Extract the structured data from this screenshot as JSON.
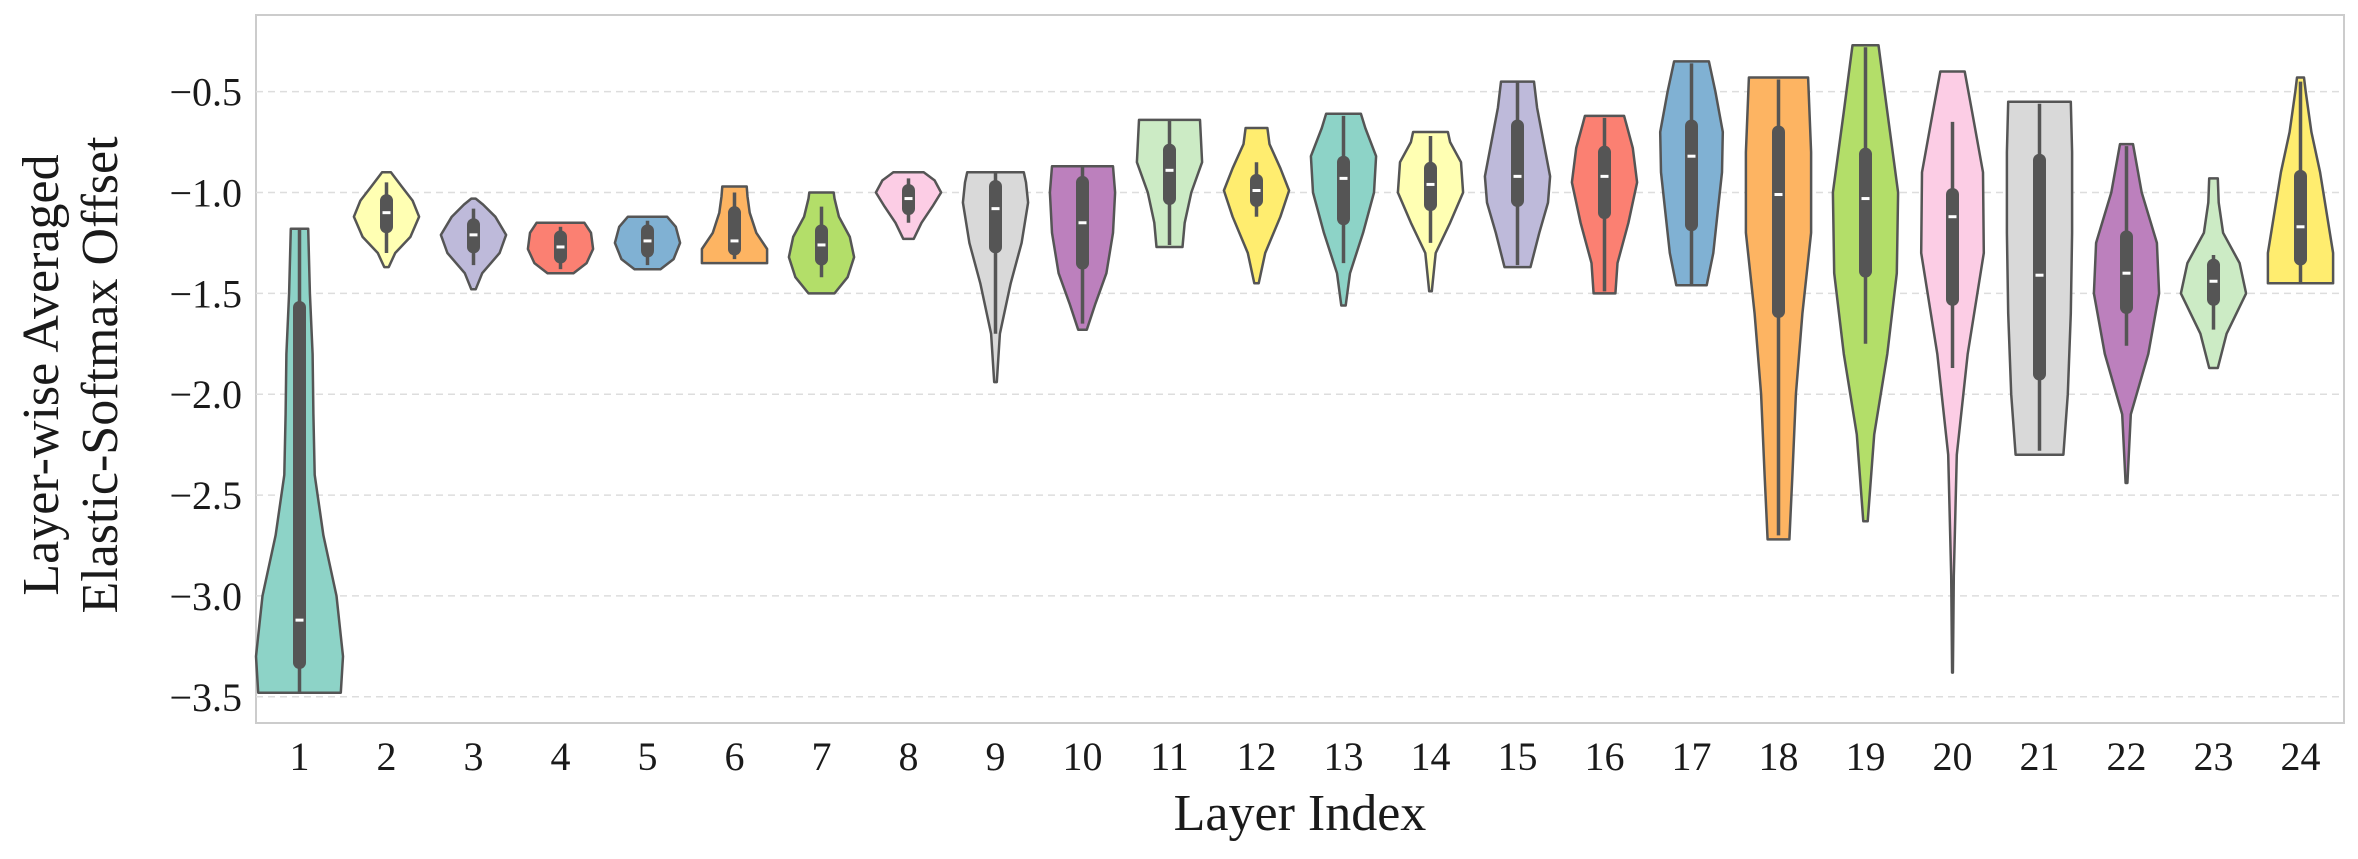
{
  "chart_data": {
    "type": "violin",
    "title": "",
    "xlabel": "Layer Index",
    "ylabel_lines": [
      "Layer-wise Averaged",
      "Elastic-Softmax Offset"
    ],
    "ylim": [
      -3.63,
      -0.12
    ],
    "yticks": [
      -0.5,
      -1.0,
      -1.5,
      -2.0,
      -2.5,
      -3.0,
      -3.5
    ],
    "ytick_labels": [
      "−0.5",
      "−1.0",
      "−1.5",
      "−2.0",
      "−2.5",
      "−3.0",
      "−3.5"
    ],
    "grid": "y-dashed",
    "categories": [
      "1",
      "2",
      "3",
      "4",
      "5",
      "6",
      "7",
      "8",
      "9",
      "10",
      "11",
      "12",
      "13",
      "14",
      "15",
      "16",
      "17",
      "18",
      "19",
      "20",
      "21",
      "22",
      "23",
      "24"
    ],
    "colors": [
      "#8dd3c7",
      "#ffffb3",
      "#bebada",
      "#fb8072",
      "#80b1d3",
      "#fdb462",
      "#b3de69",
      "#fccde5",
      "#d9d9d9",
      "#bc80bd",
      "#ccebc5",
      "#ffed6f",
      "#8dd3c7",
      "#ffffb3",
      "#bebada",
      "#fb8072",
      "#80b1d3",
      "#fdb462",
      "#b3de69",
      "#fccde5",
      "#d9d9d9",
      "#bc80bd",
      "#ccebc5",
      "#ffed6f"
    ],
    "violins": [
      {
        "min": -3.48,
        "max": -1.18,
        "q1": -3.33,
        "median": -3.12,
        "q3": -1.57,
        "whisker_low": -3.48,
        "whisker_high": -1.18,
        "cut": true,
        "profile": [
          [
            -3.48,
            0.95
          ],
          [
            -3.3,
            1.0
          ],
          [
            -3.0,
            0.85
          ],
          [
            -2.7,
            0.55
          ],
          [
            -2.4,
            0.35
          ],
          [
            -2.1,
            0.32
          ],
          [
            -1.8,
            0.3
          ],
          [
            -1.5,
            0.24
          ],
          [
            -1.18,
            0.2
          ]
        ]
      },
      {
        "min": -1.37,
        "max": -0.9,
        "q1": -1.17,
        "median": -1.1,
        "q3": -1.04,
        "whisker_low": -1.3,
        "whisker_high": -0.95,
        "profile": [
          [
            -1.37,
            0.05
          ],
          [
            -1.3,
            0.2
          ],
          [
            -1.22,
            0.55
          ],
          [
            -1.12,
            0.75
          ],
          [
            -1.04,
            0.6
          ],
          [
            -0.97,
            0.35
          ],
          [
            -0.9,
            0.1
          ]
        ]
      },
      {
        "min": -1.48,
        "max": -1.03,
        "q1": -1.27,
        "median": -1.21,
        "q3": -1.16,
        "whisker_low": -1.36,
        "whisker_high": -1.08,
        "profile": [
          [
            -1.48,
            0.05
          ],
          [
            -1.4,
            0.2
          ],
          [
            -1.3,
            0.6
          ],
          [
            -1.21,
            0.75
          ],
          [
            -1.12,
            0.5
          ],
          [
            -1.06,
            0.22
          ],
          [
            -1.03,
            0.05
          ]
        ]
      },
      {
        "min": -1.4,
        "max": -1.15,
        "q1": -1.32,
        "median": -1.27,
        "q3": -1.22,
        "whisker_low": -1.38,
        "whisker_high": -1.17,
        "profile": [
          [
            -1.4,
            0.3
          ],
          [
            -1.35,
            0.6
          ],
          [
            -1.28,
            0.75
          ],
          [
            -1.2,
            0.7
          ],
          [
            -1.15,
            0.55
          ]
        ]
      },
      {
        "min": -1.38,
        "max": -1.12,
        "q1": -1.29,
        "median": -1.24,
        "q3": -1.19,
        "whisker_low": -1.36,
        "whisker_high": -1.14,
        "profile": [
          [
            -1.38,
            0.3
          ],
          [
            -1.33,
            0.6
          ],
          [
            -1.25,
            0.75
          ],
          [
            -1.17,
            0.65
          ],
          [
            -1.12,
            0.45
          ]
        ]
      },
      {
        "min": -1.35,
        "max": -0.97,
        "q1": -1.28,
        "median": -1.24,
        "q3": -1.1,
        "whisker_low": -1.33,
        "whisker_high": -1.0,
        "profile": [
          [
            -1.35,
            0.75
          ],
          [
            -1.28,
            0.75
          ],
          [
            -1.2,
            0.5
          ],
          [
            -1.1,
            0.35
          ],
          [
            -1.02,
            0.3
          ],
          [
            -0.97,
            0.28
          ]
        ]
      },
      {
        "min": -1.5,
        "max": -1.0,
        "q1": -1.33,
        "median": -1.26,
        "q3": -1.19,
        "whisker_low": -1.42,
        "whisker_high": -1.07,
        "profile": [
          [
            -1.5,
            0.3
          ],
          [
            -1.42,
            0.6
          ],
          [
            -1.32,
            0.75
          ],
          [
            -1.22,
            0.65
          ],
          [
            -1.12,
            0.4
          ],
          [
            -1.03,
            0.3
          ],
          [
            -1.0,
            0.28
          ]
        ]
      },
      {
        "min": -1.23,
        "max": -0.9,
        "q1": -1.08,
        "median": -1.03,
        "q3": -0.99,
        "whisker_low": -1.15,
        "whisker_high": -0.93,
        "profile": [
          [
            -1.23,
            0.12
          ],
          [
            -1.15,
            0.3
          ],
          [
            -1.07,
            0.55
          ],
          [
            -1.0,
            0.75
          ],
          [
            -0.94,
            0.6
          ],
          [
            -0.9,
            0.35
          ]
        ]
      },
      {
        "min": -1.94,
        "max": -0.9,
        "q1": -1.27,
        "median": -1.08,
        "q3": -0.97,
        "whisker_low": -1.7,
        "whisker_high": -0.9,
        "profile": [
          [
            -1.94,
            0.03
          ],
          [
            -1.7,
            0.1
          ],
          [
            -1.45,
            0.35
          ],
          [
            -1.25,
            0.6
          ],
          [
            -1.05,
            0.75
          ],
          [
            -0.95,
            0.7
          ],
          [
            -0.9,
            0.65
          ]
        ]
      },
      {
        "min": -1.68,
        "max": -0.87,
        "q1": -1.35,
        "median": -1.15,
        "q3": -0.95,
        "whisker_low": -1.65,
        "whisker_high": -0.87,
        "profile": [
          [
            -1.68,
            0.1
          ],
          [
            -1.55,
            0.3
          ],
          [
            -1.4,
            0.55
          ],
          [
            -1.2,
            0.7
          ],
          [
            -1.0,
            0.75
          ],
          [
            -0.87,
            0.7
          ]
        ]
      },
      {
        "min": -1.27,
        "max": -0.64,
        "q1": -1.03,
        "median": -0.89,
        "q3": -0.79,
        "whisker_low": -1.26,
        "whisker_high": -0.64,
        "profile": [
          [
            -1.27,
            0.3
          ],
          [
            -1.15,
            0.35
          ],
          [
            -1.0,
            0.5
          ],
          [
            -0.85,
            0.75
          ],
          [
            -0.72,
            0.72
          ],
          [
            -0.64,
            0.7
          ]
        ]
      },
      {
        "min": -1.45,
        "max": -0.68,
        "q1": -1.04,
        "median": -0.99,
        "q3": -0.94,
        "whisker_low": -1.12,
        "whisker_high": -0.85,
        "profile": [
          [
            -1.45,
            0.05
          ],
          [
            -1.3,
            0.2
          ],
          [
            -1.12,
            0.55
          ],
          [
            -0.99,
            0.75
          ],
          [
            -0.88,
            0.55
          ],
          [
            -0.76,
            0.3
          ],
          [
            -0.68,
            0.25
          ]
        ]
      },
      {
        "min": -1.56,
        "max": -0.61,
        "q1": -1.13,
        "median": -0.93,
        "q3": -0.85,
        "whisker_low": -1.35,
        "whisker_high": -0.62,
        "profile": [
          [
            -1.56,
            0.05
          ],
          [
            -1.4,
            0.15
          ],
          [
            -1.2,
            0.45
          ],
          [
            -1.0,
            0.7
          ],
          [
            -0.82,
            0.75
          ],
          [
            -0.68,
            0.5
          ],
          [
            -0.61,
            0.4
          ]
        ]
      },
      {
        "min": -1.49,
        "max": -0.7,
        "q1": -1.06,
        "median": -0.96,
        "q3": -0.88,
        "whisker_low": -1.25,
        "whisker_high": -0.72,
        "profile": [
          [
            -1.49,
            0.03
          ],
          [
            -1.3,
            0.12
          ],
          [
            -1.15,
            0.45
          ],
          [
            -1.0,
            0.75
          ],
          [
            -0.85,
            0.7
          ],
          [
            -0.75,
            0.45
          ],
          [
            -0.7,
            0.4
          ]
        ]
      },
      {
        "min": -1.37,
        "max": -0.45,
        "q1": -1.04,
        "median": -0.92,
        "q3": -0.67,
        "whisker_low": -1.36,
        "whisker_high": -0.45,
        "profile": [
          [
            -1.37,
            0.3
          ],
          [
            -1.2,
            0.5
          ],
          [
            -1.05,
            0.7
          ],
          [
            -0.92,
            0.75
          ],
          [
            -0.75,
            0.6
          ],
          [
            -0.58,
            0.45
          ],
          [
            -0.45,
            0.38
          ]
        ]
      },
      {
        "min": -1.5,
        "max": -0.62,
        "q1": -1.1,
        "median": -0.92,
        "q3": -0.8,
        "whisker_low": -1.49,
        "whisker_high": -0.63,
        "profile": [
          [
            -1.5,
            0.25
          ],
          [
            -1.35,
            0.3
          ],
          [
            -1.15,
            0.55
          ],
          [
            -0.95,
            0.75
          ],
          [
            -0.78,
            0.65
          ],
          [
            -0.66,
            0.5
          ],
          [
            -0.62,
            0.45
          ]
        ]
      },
      {
        "min": -1.46,
        "max": -0.35,
        "q1": -1.16,
        "median": -0.82,
        "q3": -0.67,
        "whisker_low": -1.46,
        "whisker_high": -0.36,
        "profile": [
          [
            -1.46,
            0.35
          ],
          [
            -1.3,
            0.5
          ],
          [
            -1.1,
            0.6
          ],
          [
            -0.9,
            0.7
          ],
          [
            -0.7,
            0.72
          ],
          [
            -0.5,
            0.55
          ],
          [
            -0.35,
            0.4
          ]
        ]
      },
      {
        "min": -2.72,
        "max": -0.43,
        "q1": -1.59,
        "median": -1.01,
        "q3": -0.7,
        "whisker_low": -2.7,
        "whisker_high": -0.44,
        "profile": [
          [
            -2.72,
            0.25
          ],
          [
            -2.4,
            0.32
          ],
          [
            -2.0,
            0.4
          ],
          [
            -1.6,
            0.55
          ],
          [
            -1.2,
            0.75
          ],
          [
            -0.8,
            0.75
          ],
          [
            -0.43,
            0.68
          ]
        ]
      },
      {
        "min": -2.63,
        "max": -0.27,
        "q1": -1.39,
        "median": -1.03,
        "q3": -0.81,
        "whisker_low": -1.75,
        "whisker_high": -0.28,
        "profile": [
          [
            -2.63,
            0.05
          ],
          [
            -2.2,
            0.2
          ],
          [
            -1.8,
            0.5
          ],
          [
            -1.4,
            0.72
          ],
          [
            -1.0,
            0.75
          ],
          [
            -0.6,
            0.5
          ],
          [
            -0.27,
            0.3
          ]
        ]
      },
      {
        "min": -3.38,
        "max": -0.4,
        "q1": -1.53,
        "median": -1.12,
        "q3": -1.01,
        "whisker_low": -1.87,
        "whisker_high": -0.65,
        "profile": [
          [
            -3.38,
            0.01
          ],
          [
            -2.9,
            0.03
          ],
          [
            -2.3,
            0.1
          ],
          [
            -1.8,
            0.35
          ],
          [
            -1.3,
            0.72
          ],
          [
            -0.9,
            0.7
          ],
          [
            -0.6,
            0.45
          ],
          [
            -0.4,
            0.28
          ]
        ]
      },
      {
        "min": -2.3,
        "max": -0.55,
        "q1": -1.9,
        "median": -1.41,
        "q3": -0.84,
        "whisker_low": -2.28,
        "whisker_high": -0.56,
        "profile": [
          [
            -2.3,
            0.55
          ],
          [
            -2.0,
            0.65
          ],
          [
            -1.6,
            0.72
          ],
          [
            -1.2,
            0.75
          ],
          [
            -0.8,
            0.75
          ],
          [
            -0.55,
            0.72
          ]
        ]
      },
      {
        "min": -2.44,
        "max": -0.76,
        "q1": -1.57,
        "median": -1.4,
        "q3": -1.22,
        "whisker_low": -1.76,
        "whisker_high": -0.77,
        "profile": [
          [
            -2.44,
            0.02
          ],
          [
            -2.1,
            0.1
          ],
          [
            -1.8,
            0.5
          ],
          [
            -1.5,
            0.75
          ],
          [
            -1.25,
            0.7
          ],
          [
            -1.0,
            0.35
          ],
          [
            -0.76,
            0.15
          ]
        ]
      },
      {
        "min": -1.87,
        "max": -0.93,
        "q1": -1.53,
        "median": -1.44,
        "q3": -1.36,
        "whisker_low": -1.68,
        "whisker_high": -1.31,
        "profile": [
          [
            -1.87,
            0.1
          ],
          [
            -1.7,
            0.3
          ],
          [
            -1.5,
            0.75
          ],
          [
            -1.35,
            0.6
          ],
          [
            -1.2,
            0.22
          ],
          [
            -1.05,
            0.12
          ],
          [
            -0.93,
            0.1
          ]
        ]
      },
      {
        "min": -1.45,
        "max": -0.43,
        "q1": -1.33,
        "median": -1.17,
        "q3": -0.92,
        "whisker_low": -1.45,
        "whisker_high": -0.45,
        "profile": [
          [
            -1.45,
            0.75
          ],
          [
            -1.3,
            0.75
          ],
          [
            -1.1,
            0.6
          ],
          [
            -0.9,
            0.45
          ],
          [
            -0.7,
            0.25
          ],
          [
            -0.5,
            0.12
          ],
          [
            -0.43,
            0.08
          ]
        ]
      }
    ]
  }
}
